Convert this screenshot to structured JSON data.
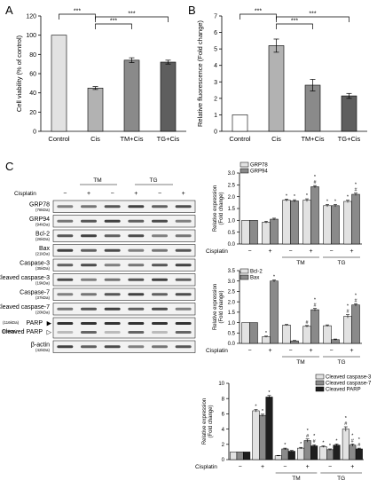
{
  "panel_labels": {
    "a": "A",
    "b": "B",
    "c": "C"
  },
  "colors": {
    "light": "#e2e2e2",
    "mid": "#b2b2b2",
    "midDark": "#8a8a8a",
    "dark": "#5e5e5e",
    "black": "#1e1e1e",
    "white": "#ffffff"
  },
  "cisplatin_label": "Cisplatin",
  "minus": "−",
  "plus": "+",
  "group_labels": {
    "tm": "TM",
    "tg": "TG"
  },
  "chart_data": [
    {
      "type": "bar",
      "panel": "A",
      "categories": [
        "Control",
        "Cis",
        "TM+Cis",
        "TG+Cis"
      ],
      "values": [
        100,
        45,
        74,
        72
      ],
      "errors": [
        0,
        1.5,
        2.5,
        2
      ],
      "colors": [
        "#e2e2e2",
        "#b2b2b2",
        "#8a8a8a",
        "#5e5e5e"
      ],
      "ylabel": "Cell viability (% of control)",
      "ylim": [
        0,
        120
      ],
      "yticks": [
        0,
        20,
        40,
        60,
        80,
        100,
        120
      ],
      "significance": [
        {
          "from": 0,
          "to": 1,
          "label": "***"
        },
        {
          "from": 1,
          "to": 2,
          "label": "***"
        },
        {
          "from": 1,
          "to": 3,
          "label": "***"
        }
      ]
    },
    {
      "type": "bar",
      "panel": "B",
      "categories": [
        "Control",
        "Cis",
        "TM+Cis",
        "TG+Cis"
      ],
      "values": [
        1,
        5.2,
        2.8,
        2.15
      ],
      "errors": [
        0,
        0.4,
        0.35,
        0.15
      ],
      "colors": [
        "#ffffff",
        "#b2b2b2",
        "#8a8a8a",
        "#5e5e5e"
      ],
      "ylabel": "Relative fluorescence (Fold change)",
      "ylim": [
        0,
        7
      ],
      "yticks": [
        0,
        1,
        2,
        3,
        4,
        5,
        6,
        7
      ],
      "significance": [
        {
          "from": 0,
          "to": 1,
          "label": "***"
        },
        {
          "from": 1,
          "to": 2,
          "label": "***"
        },
        {
          "from": 1,
          "to": 3,
          "label": "***"
        }
      ]
    },
    {
      "type": "bar",
      "panel": "C-top",
      "ylabel": "Relative expression (Fold change)",
      "ylim": [
        0,
        3.0
      ],
      "yticks": [
        0,
        0.5,
        1.0,
        1.5,
        2.0,
        2.5,
        3.0
      ],
      "tickFormat": 1,
      "conditions": [
        "−",
        "+",
        "−",
        "+",
        "−",
        "+"
      ],
      "series": [
        {
          "name": "GRP78",
          "color": "#e2e2e2",
          "values": [
            1.0,
            0.92,
            1.85,
            1.85,
            1.62,
            1.8
          ],
          "errors": [
            0,
            0.04,
            0.05,
            0.06,
            0.05,
            0.05
          ],
          "marks": [
            "",
            "",
            "*",
            "*",
            "*",
            "*"
          ]
        },
        {
          "name": "GRP94",
          "color": "#8a8a8a",
          "values": [
            1.0,
            1.05,
            1.82,
            2.42,
            1.62,
            2.1
          ],
          "errors": [
            0,
            0.04,
            0.05,
            0.05,
            0.05,
            0.05
          ],
          "marks": [
            "",
            "",
            "*",
            "*\n#",
            "*",
            "*\n#"
          ]
        }
      ]
    },
    {
      "type": "bar",
      "panel": "C-middle",
      "ylabel": "Relative expression (Fold change)",
      "ylim": [
        0,
        3.5
      ],
      "yticks": [
        0,
        0.5,
        1.0,
        1.5,
        2.0,
        2.5,
        3.0,
        3.5
      ],
      "tickFormat": 1,
      "conditions": [
        "−",
        "+",
        "−",
        "+",
        "−",
        "+"
      ],
      "series": [
        {
          "name": "Bcl-2",
          "color": "#e2e2e2",
          "values": [
            1.0,
            0.32,
            0.88,
            0.82,
            0.85,
            1.3
          ],
          "errors": [
            0,
            0.03,
            0.03,
            0.04,
            0.04,
            0.08
          ],
          "marks": [
            "",
            "*",
            "",
            "#",
            "",
            "*\n#"
          ]
        },
        {
          "name": "Bax",
          "color": "#8a8a8a",
          "values": [
            1.0,
            3.0,
            0.12,
            1.62,
            0.18,
            1.85
          ],
          "errors": [
            0,
            0.05,
            0.02,
            0.06,
            0.03,
            0.06
          ],
          "marks": [
            "",
            "*",
            "",
            "*\n#",
            "",
            "*\n#"
          ]
        }
      ]
    },
    {
      "type": "bar",
      "panel": "C-bottom",
      "ylabel": "Relative expression (Fold change)",
      "ylim": [
        0,
        10
      ],
      "yticks": [
        0,
        2,
        4,
        6,
        8,
        10
      ],
      "tickFormat": 0,
      "conditions": [
        "−",
        "+",
        "−",
        "+",
        "−",
        "+"
      ],
      "series": [
        {
          "name": "Cleaved caspase-3",
          "color": "#e2e2e2",
          "values": [
            1.0,
            6.4,
            0.5,
            1.5,
            1.7,
            4.0
          ],
          "errors": [
            0,
            0.15,
            0.05,
            0.1,
            0.1,
            0.3
          ],
          "marks": [
            "",
            "*",
            "",
            "*",
            "*",
            "*\n#"
          ]
        },
        {
          "name": "Cleaved caspase-7",
          "color": "#8a8a8a",
          "values": [
            1.0,
            5.8,
            1.4,
            2.5,
            1.3,
            1.9
          ],
          "errors": [
            0,
            0.15,
            0.1,
            0.2,
            0.1,
            0.15
          ],
          "marks": [
            "",
            "*",
            "*",
            "*\n#",
            "*",
            "*\n#"
          ]
        },
        {
          "name": "Cleaved PARP",
          "color": "#1e1e1e",
          "values": [
            1.0,
            8.2,
            1.1,
            1.8,
            1.9,
            1.4
          ],
          "errors": [
            0,
            0.2,
            0.1,
            0.15,
            0.15,
            0.1
          ],
          "marks": [
            "",
            "*",
            "",
            "*\n#",
            "*",
            "*\n#"
          ]
        }
      ]
    }
  ],
  "western_blot": {
    "rows": [
      {
        "label": "GRP78",
        "kda": "(78kDa)"
      },
      {
        "label": "GRP94",
        "kda": "(94kDa)"
      },
      {
        "label": "Bcl-2",
        "kda": "(26kDa)"
      },
      {
        "label": "Bax",
        "kda": "(21kDa)"
      },
      {
        "label": "Caspase-3",
        "kda": "(35kDa)"
      },
      {
        "label": "Cleaved caspase-3",
        "kda": "(19kDa)"
      },
      {
        "label": "Caspase-7",
        "kda": "(37kDa)"
      },
      {
        "label": "Cleaved caspase-7",
        "kda": "(20kDa)"
      },
      {
        "label": "PARP",
        "kda": "(116kDa)",
        "second_label": "Cleaved PARP",
        "second_kda": "(89kDa)"
      },
      {
        "label": "β-actin",
        "kda": "(42kDa)"
      }
    ]
  }
}
